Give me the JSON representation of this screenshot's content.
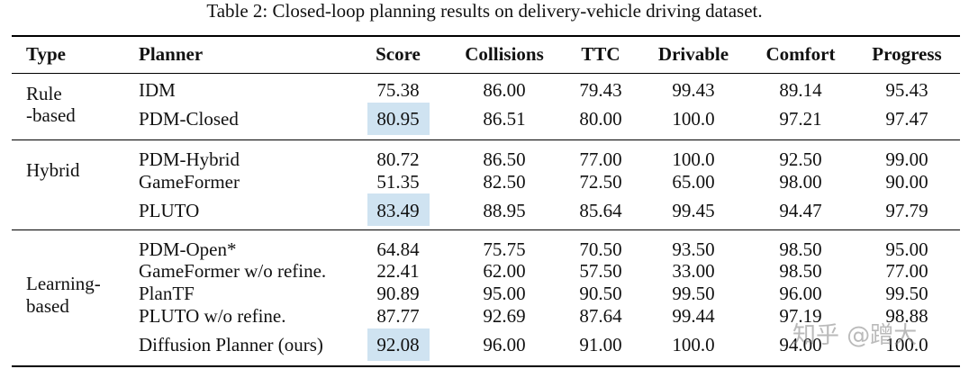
{
  "caption": "Table 2: Closed-loop planning results on delivery-vehicle driving dataset.",
  "headers": {
    "type": "Type",
    "planner": "Planner",
    "score": "Score",
    "collisions": "Collisions",
    "ttc": "TTC",
    "drivable": "Drivable",
    "comfort": "Comfort",
    "progress": "Progress"
  },
  "groups": [
    {
      "type_lines": [
        "Rule",
        "-based"
      ],
      "rows": [
        {
          "planner": "IDM",
          "score": "75.38",
          "collisions": "86.00",
          "ttc": "79.43",
          "drivable": "99.43",
          "comfort": "89.14",
          "progress": "95.43"
        },
        {
          "planner": "PDM-Closed",
          "score": "80.95",
          "collisions": "86.51",
          "ttc": "80.00",
          "drivable": "100.0",
          "comfort": "97.21",
          "progress": "97.47",
          "highlight": true
        }
      ]
    },
    {
      "type_lines": [
        "Hybrid"
      ],
      "rows": [
        {
          "planner": "PDM-Hybrid",
          "score": "80.72",
          "collisions": "86.50",
          "ttc": "77.00",
          "drivable": "100.0",
          "comfort": "92.50",
          "progress": "99.00"
        },
        {
          "planner": "GameFormer",
          "score": "51.35",
          "collisions": "82.50",
          "ttc": "72.50",
          "drivable": "65.00",
          "comfort": "98.00",
          "progress": "90.00"
        },
        {
          "planner": "PLUTO",
          "score": "83.49",
          "collisions": "88.95",
          "ttc": "85.64",
          "drivable": "99.45",
          "comfort": "94.47",
          "progress": "97.79",
          "highlight": true
        }
      ]
    },
    {
      "type_lines": [
        "Learning-",
        "based"
      ],
      "rows": [
        {
          "planner": "PDM-Open*",
          "score": "64.84",
          "collisions": "75.75",
          "ttc": "70.50",
          "drivable": "93.50",
          "comfort": "98.50",
          "progress": "95.00"
        },
        {
          "planner": "GameFormer w/o refine.",
          "score": "22.41",
          "collisions": "62.00",
          "ttc": "57.50",
          "drivable": "33.00",
          "comfort": "98.50",
          "progress": "77.00"
        },
        {
          "planner": "PlanTF",
          "score": "90.89",
          "collisions": "95.00",
          "ttc": "90.50",
          "drivable": "99.50",
          "comfort": "96.00",
          "progress": "99.50"
        },
        {
          "planner": "PLUTO w/o refine.",
          "score": "87.77",
          "collisions": "92.69",
          "ttc": "87.64",
          "drivable": "99.44",
          "comfort": "97.19",
          "progress": "98.88"
        },
        {
          "planner": "Diffusion Planner (ours)",
          "score": "92.08",
          "collisions": "96.00",
          "ttc": "91.00",
          "drivable": "100.0",
          "comfort": "94.00",
          "progress": "100.0",
          "highlight": true
        }
      ]
    }
  ],
  "watermark": "知乎 @蹭大"
}
